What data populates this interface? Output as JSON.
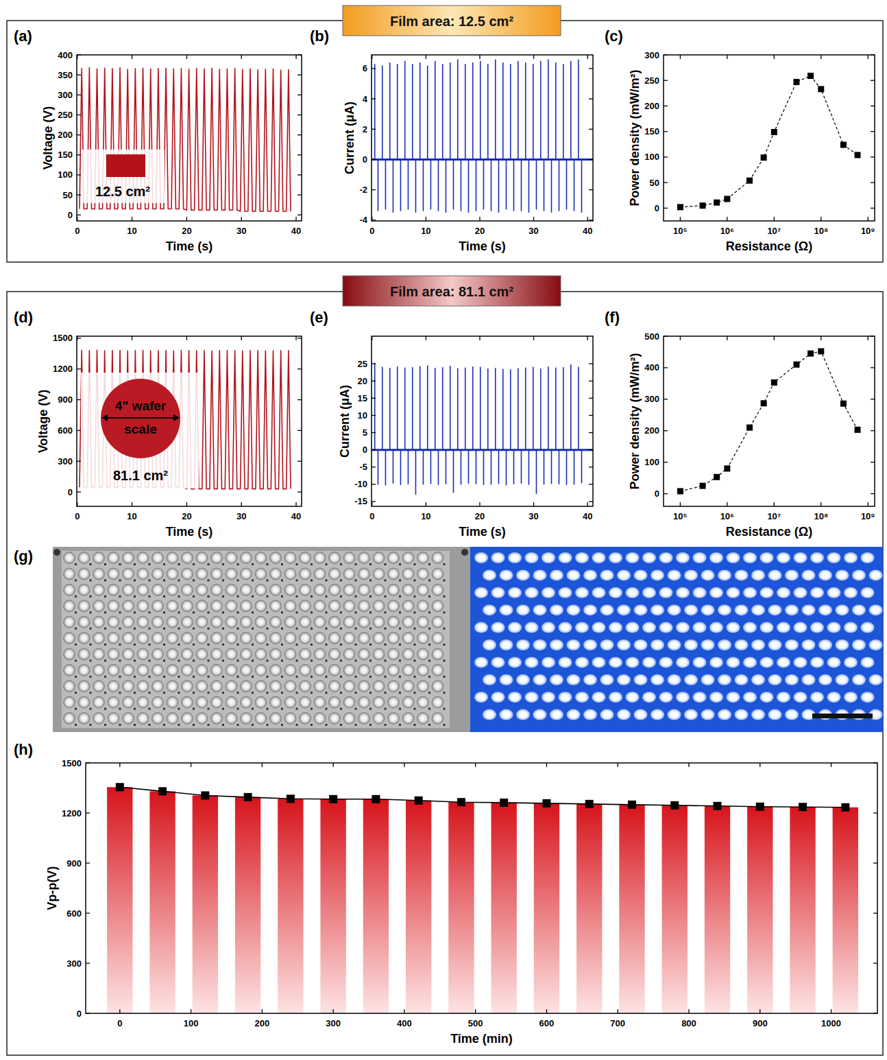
{
  "headers": [
    "Film area: 12.5 cm²",
    "Film area: 81.1 cm²"
  ],
  "photo_panel": {
    "title": "(g)"
  },
  "chart_data": [
    {
      "type": "line",
      "title": "(a)",
      "x_label": "Time (s)",
      "y_label": "Voltage (V)",
      "color": "#b3121b",
      "grid": false,
      "xlim": [
        -0.1,
        41
      ],
      "xticks": [
        0,
        10,
        20,
        30,
        40
      ],
      "ylim": [
        -15,
        400
      ],
      "yticks": [
        0,
        50,
        100,
        150,
        200,
        250,
        300,
        350,
        400
      ],
      "annotations": [
        "12.5 cm²"
      ],
      "x": [
        0.4,
        0.8,
        1.2,
        1.8,
        2.2,
        2.6,
        3.2,
        3.6,
        4.0,
        4.6,
        5.0,
        5.4,
        6.0,
        6.4,
        6.8,
        7.4,
        7.8,
        8.2,
        8.8,
        9.2,
        9.6,
        10.2,
        10.6,
        11.0,
        11.6,
        12.0,
        12.4,
        13.0,
        13.4,
        13.8,
        14.4,
        14.8,
        15.2,
        15.8,
        16.2,
        16.6,
        17.2,
        17.6,
        18.0,
        18.6,
        19.0,
        19.4,
        20.0,
        20.4,
        20.8,
        21.4,
        21.8,
        22.2,
        22.8,
        23.2,
        23.6,
        24.2,
        24.6,
        25.0,
        25.6,
        26.0,
        26.4,
        27.0,
        27.4,
        27.8,
        28.4,
        28.8,
        29.2,
        29.8,
        30.2,
        30.6,
        31.2,
        31.6,
        32.0,
        32.6,
        33.0,
        33.4,
        34.0,
        34.4,
        34.8,
        35.4,
        35.8,
        36.2,
        36.8,
        37.2,
        37.6,
        38.2,
        38.6,
        39.0
      ],
      "values": [
        15,
        366,
        15,
        15,
        368,
        15,
        15,
        365,
        15,
        15,
        367,
        15,
        15,
        366,
        15,
        15,
        368,
        15,
        15,
        364,
        15,
        15,
        366,
        15,
        15,
        367,
        15,
        15,
        365,
        15,
        15,
        366,
        15,
        15,
        367,
        15,
        15,
        365,
        15,
        15,
        366,
        15,
        12,
        364,
        12,
        12,
        366,
        12,
        12,
        365,
        12,
        12,
        367,
        12,
        12,
        364,
        12,
        12,
        365,
        12,
        12,
        366,
        12,
        9,
        364,
        9,
        9,
        365,
        9,
        9,
        363,
        9,
        9,
        364,
        9,
        9,
        365,
        9,
        9,
        362,
        9,
        9,
        363,
        9
      ]
    },
    {
      "type": "stem",
      "title": "(b)",
      "x_label": "Time (s)",
      "y_label": "Current (μA)",
      "color": "#1a2bb8",
      "grid": false,
      "xlim": [
        -0.1,
        41
      ],
      "xticks": [
        0,
        10,
        20,
        30,
        40
      ],
      "ylim": [
        -4.05,
        6.9
      ],
      "yticks": [
        -4,
        -2,
        0,
        2,
        4,
        6
      ],
      "x": [
        0.5,
        1.1,
        1.9,
        2.5,
        3.3,
        3.9,
        4.7,
        5.3,
        6.1,
        6.7,
        7.5,
        8.1,
        8.9,
        9.5,
        10.3,
        10.9,
        11.7,
        12.3,
        13.1,
        13.7,
        14.5,
        15.1,
        15.9,
        16.5,
        17.3,
        17.9,
        18.7,
        19.3,
        20.1,
        20.7,
        21.5,
        22.1,
        22.9,
        23.5,
        24.3,
        24.9,
        25.7,
        26.3,
        27.1,
        27.7,
        28.5,
        29.1,
        29.9,
        30.5,
        31.3,
        31.9,
        32.7,
        33.3,
        34.1,
        34.7,
        35.5,
        36.1,
        36.9,
        37.5,
        38.3,
        38.9
      ],
      "values": [
        6.3,
        -3.4,
        6.2,
        -3.3,
        6.4,
        -3.5,
        6.3,
        -3.4,
        6.5,
        -3.3,
        6.3,
        -3.5,
        6.4,
        -3.4,
        6.2,
        -3.3,
        6.5,
        -3.4,
        6.3,
        -3.5,
        6.4,
        -3.3,
        6.6,
        -3.4,
        6.3,
        -3.5,
        6.4,
        -3.4,
        6.5,
        -3.3,
        6.3,
        -3.4,
        6.6,
        -3.5,
        6.4,
        -3.3,
        6.3,
        -3.4,
        6.5,
        -3.4,
        6.4,
        -3.5,
        6.3,
        -3.3,
        6.5,
        -3.4,
        6.6,
        -3.5,
        6.4,
        -3.4,
        6.3,
        -3.3,
        6.5,
        -3.4,
        6.6,
        -3.5
      ]
    },
    {
      "type": "scatter",
      "title": "(c)",
      "x_label": "Resistance (Ω)",
      "y_label": "Power density (mW/m²)",
      "color": "#000000",
      "marker": "square",
      "line_style": "dashed",
      "log": "x",
      "grid": false,
      "xlim": [
        44000,
        1390000000
      ],
      "xticks": [
        {
          "value": 100000,
          "label": "10⁵"
        },
        {
          "value": 1000000,
          "label": "10⁶"
        },
        {
          "value": 10000000,
          "label": "10⁷"
        },
        {
          "value": 100000000,
          "label": "10⁸"
        },
        {
          "value": 1000000000,
          "label": "10⁹"
        }
      ],
      "ylim": [
        -25,
        300
      ],
      "yticks": [
        0,
        50,
        100,
        150,
        200,
        250,
        300
      ],
      "x": [
        100000,
        300000,
        600000,
        1000000,
        3000000,
        6000000,
        10000000,
        30000000,
        60000000,
        100000000,
        300000000,
        600000000
      ],
      "values": [
        2,
        5,
        11,
        18,
        54,
        99,
        149,
        247,
        259,
        233,
        124,
        104
      ]
    },
    {
      "type": "line",
      "title": "(d)",
      "x_label": "Time (s)",
      "y_label": "Voltage (V)",
      "color": "#b3121b",
      "grid": false,
      "xlim": [
        -0.1,
        41
      ],
      "xticks": [
        0,
        10,
        20,
        30,
        40
      ],
      "ylim": [
        -140,
        1520
      ],
      "yticks": [
        0,
        300,
        600,
        900,
        1200,
        1500
      ],
      "annotations": [
        "4\" wafer scale",
        "81.1 cm²"
      ],
      "x": [
        0.4,
        0.8,
        1.2,
        1.8,
        2.2,
        2.6,
        3.2,
        3.6,
        4.0,
        4.6,
        5.0,
        5.4,
        6.0,
        6.4,
        6.8,
        7.4,
        7.8,
        8.2,
        8.8,
        9.2,
        9.6,
        10.2,
        10.6,
        11.0,
        11.6,
        12.0,
        12.4,
        13.0,
        13.4,
        13.8,
        14.4,
        14.8,
        15.2,
        15.8,
        16.2,
        16.6,
        17.2,
        17.6,
        18.0,
        18.6,
        19.0,
        19.4,
        20.0,
        20.4,
        20.8,
        21.4,
        21.8,
        22.2,
        22.8,
        23.2,
        23.6,
        24.2,
        24.6,
        25.0,
        25.6,
        26.0,
        26.4,
        27.0,
        27.4,
        27.8,
        28.4,
        28.8,
        29.2,
        29.8,
        30.2,
        30.6,
        31.2,
        31.6,
        32.0,
        32.6,
        33.0,
        33.4,
        34.0,
        34.4,
        34.8,
        35.4,
        35.8,
        36.2,
        36.8,
        37.2,
        37.6,
        38.2,
        38.6,
        39.0
      ],
      "values": [
        45,
        1382,
        45,
        45,
        1380,
        45,
        45,
        1384,
        45,
        45,
        1379,
        45,
        45,
        1381,
        45,
        45,
        1383,
        45,
        45,
        1378,
        45,
        45,
        1380,
        45,
        45,
        1382,
        45,
        45,
        1379,
        45,
        45,
        1381,
        45,
        45,
        1380,
        45,
        45,
        1378,
        45,
        45,
        1383,
        45,
        30,
        1380,
        30,
        30,
        1379,
        30,
        30,
        1381,
        30,
        30,
        1378,
        30,
        30,
        1380,
        30,
        30,
        1382,
        30,
        30,
        1379,
        30,
        30,
        1377,
        30,
        30,
        1381,
        30,
        30,
        1380,
        30,
        30,
        1378,
        30,
        30,
        1379,
        30,
        30,
        1381,
        30,
        30,
        1380,
        30
      ]
    },
    {
      "type": "stem",
      "title": "(e)",
      "x_label": "Time (s)",
      "y_label": "Current (μA)",
      "color": "#1a2bb8",
      "grid": false,
      "xlim": [
        -0.1,
        41
      ],
      "xticks": [
        0,
        10,
        20,
        30,
        40
      ],
      "ylim": [
        -16.4,
        33
      ],
      "yticks": [
        -15,
        -10,
        -5,
        0,
        5,
        10,
        15,
        20,
        25
      ],
      "x": [
        0.5,
        1.1,
        1.9,
        2.5,
        3.3,
        3.9,
        4.7,
        5.3,
        6.1,
        6.7,
        7.5,
        8.1,
        8.9,
        9.5,
        10.3,
        10.9,
        11.7,
        12.3,
        13.1,
        13.7,
        14.5,
        15.1,
        15.9,
        16.5,
        17.3,
        17.9,
        18.7,
        19.3,
        20.1,
        20.7,
        21.5,
        22.1,
        22.9,
        23.5,
        24.3,
        24.9,
        25.7,
        26.3,
        27.1,
        27.7,
        28.5,
        29.1,
        29.9,
        30.5,
        31.3,
        31.9,
        32.7,
        33.3,
        34.1,
        34.7,
        35.5,
        36.1,
        36.9,
        37.5,
        38.3,
        38.9
      ],
      "values": [
        25.3,
        -10.1,
        24.1,
        -10.3,
        23.8,
        -9.8,
        24.2,
        -10.2,
        23.9,
        -10.0,
        24.0,
        -13.0,
        24.3,
        -10.1,
        24.5,
        -9.9,
        23.8,
        -10.2,
        24.0,
        -10.0,
        24.4,
        -12.5,
        23.7,
        -10.1,
        23.9,
        -9.8,
        24.2,
        -10.0,
        24.1,
        -10.2,
        23.6,
        -10.1,
        23.8,
        -9.9,
        23.5,
        -10.3,
        23.4,
        -10.0,
        23.7,
        -9.8,
        23.9,
        -10.2,
        24.1,
        -12.8,
        23.6,
        -10.1,
        24.2,
        -9.9,
        23.9,
        -10.0,
        24.0,
        -10.2,
        24.8,
        -10.1,
        24.1,
        -9.7
      ]
    },
    {
      "type": "scatter",
      "title": "(f)",
      "x_label": "Resistance (Ω)",
      "y_label": "Power density (mW/m²)",
      "color": "#000000",
      "marker": "square",
      "line_style": "dashed",
      "log": "x",
      "grid": false,
      "xlim": [
        44000,
        1390000000
      ],
      "xticks": [
        {
          "value": 100000,
          "label": "10⁵"
        },
        {
          "value": 1000000,
          "label": "10⁶"
        },
        {
          "value": 10000000,
          "label": "10⁷"
        },
        {
          "value": 100000000,
          "label": "10⁸"
        },
        {
          "value": 1000000000,
          "label": "10⁹"
        }
      ],
      "ylim": [
        -40,
        500
      ],
      "yticks": [
        0,
        100,
        200,
        300,
        400,
        500
      ],
      "x": [
        100000,
        300000,
        600000,
        1000000,
        3000000,
        6000000,
        10000000,
        30000000,
        60000000,
        100000000,
        300000000,
        600000000
      ],
      "values": [
        8,
        25,
        53,
        80,
        210,
        287,
        353,
        410,
        445,
        452,
        286,
        203
      ]
    },
    {
      "type": "bar",
      "title": "(h)",
      "x_label": "Time (min)",
      "y_label": "Vp-p(V)",
      "color": "#d7141c",
      "marker": "square",
      "line_style": "solid",
      "grid": false,
      "xlim": [
        -48,
        1065
      ],
      "xticks": [
        0,
        100,
        200,
        300,
        400,
        500,
        600,
        700,
        800,
        900,
        1000
      ],
      "ylim": [
        0,
        1500
      ],
      "yticks": [
        0,
        300,
        600,
        900,
        1200,
        1500
      ],
      "x": [
        0,
        60,
        120,
        180,
        240,
        300,
        360,
        420,
        480,
        540,
        600,
        660,
        720,
        780,
        840,
        900,
        960,
        1020
      ],
      "values": [
        1355,
        1330,
        1305,
        1295,
        1285,
        1283,
        1283,
        1275,
        1265,
        1262,
        1258,
        1254,
        1250,
        1246,
        1242,
        1238,
        1236,
        1234
      ]
    }
  ]
}
